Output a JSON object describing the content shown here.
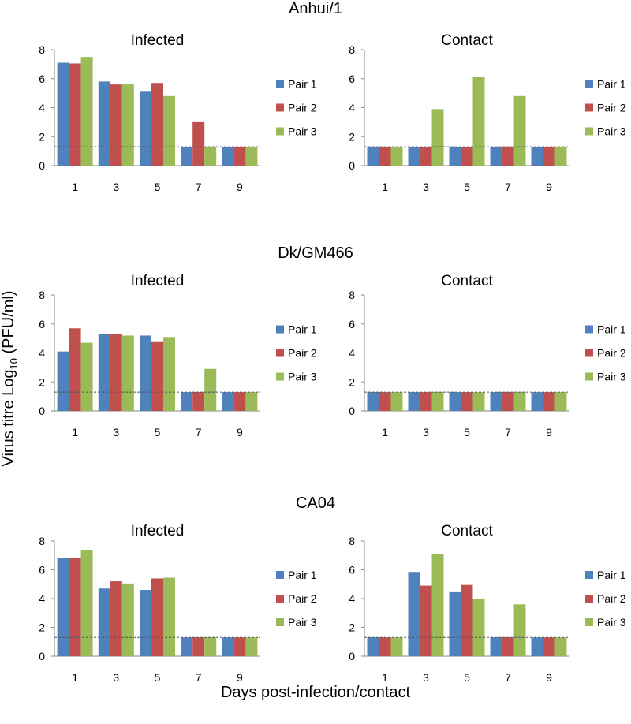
{
  "figure": {
    "ylabel_prefix": "Virus titre Log",
    "ylabel_sub": "10",
    "ylabel_suffix": " (PFU/ml)",
    "xlabel": "Days post-infection/contact"
  },
  "colors": {
    "Pair 1": "#4F81BD",
    "Pair 2": "#C0504D",
    "Pair 3": "#9BBB59",
    "threshold": "#555555",
    "axis": "#868686"
  },
  "chart_data": [
    {
      "type": "bar",
      "group": "Anhui/1",
      "title": "Infected",
      "categories": [
        "1",
        "3",
        "5",
        "7",
        "9"
      ],
      "ylim": [
        0,
        8
      ],
      "yticks": [
        0,
        2,
        4,
        6,
        8
      ],
      "legend": "right",
      "detection_limit": 1.3,
      "series": [
        {
          "name": "Pair 1",
          "values": [
            7.1,
            5.8,
            5.1,
            1.3,
            1.3
          ]
        },
        {
          "name": "Pair 2",
          "values": [
            7.05,
            5.6,
            5.7,
            3.0,
            1.3
          ]
        },
        {
          "name": "Pair 3",
          "values": [
            7.5,
            5.6,
            4.8,
            1.3,
            1.3
          ]
        }
      ]
    },
    {
      "type": "bar",
      "group": "Anhui/1",
      "title": "Contact",
      "categories": [
        "1",
        "3",
        "5",
        "7",
        "9"
      ],
      "ylim": [
        0,
        8
      ],
      "yticks": [
        0,
        2,
        4,
        6,
        8
      ],
      "legend": "right",
      "detection_limit": 1.3,
      "series": [
        {
          "name": "Pair 1",
          "values": [
            1.3,
            1.3,
            1.3,
            1.3,
            1.3
          ]
        },
        {
          "name": "Pair 2",
          "values": [
            1.3,
            1.3,
            1.3,
            1.3,
            1.3
          ]
        },
        {
          "name": "Pair 3",
          "values": [
            1.3,
            3.9,
            6.1,
            4.8,
            1.3
          ]
        }
      ]
    },
    {
      "type": "bar",
      "group": "Dk/GM466",
      "title": "Infected",
      "categories": [
        "1",
        "3",
        "5",
        "7",
        "9"
      ],
      "ylim": [
        0,
        8
      ],
      "yticks": [
        0,
        2,
        4,
        6,
        8
      ],
      "legend": "right",
      "detection_limit": 1.3,
      "series": [
        {
          "name": "Pair 1",
          "values": [
            4.1,
            5.3,
            5.2,
            1.3,
            1.3
          ]
        },
        {
          "name": "Pair 2",
          "values": [
            5.7,
            5.3,
            4.75,
            1.3,
            1.3
          ]
        },
        {
          "name": "Pair 3",
          "values": [
            4.7,
            5.2,
            5.1,
            2.9,
            1.3
          ]
        }
      ]
    },
    {
      "type": "bar",
      "group": "Dk/GM466",
      "title": "Contact",
      "categories": [
        "1",
        "3",
        "5",
        "7",
        "9"
      ],
      "ylim": [
        0,
        8
      ],
      "yticks": [
        0,
        2,
        4,
        6,
        8
      ],
      "legend": "right",
      "detection_limit": 1.3,
      "series": [
        {
          "name": "Pair 1",
          "values": [
            1.3,
            1.3,
            1.3,
            1.3,
            1.3
          ]
        },
        {
          "name": "Pair 2",
          "values": [
            1.3,
            1.3,
            1.3,
            1.3,
            1.3
          ]
        },
        {
          "name": "Pair 3",
          "values": [
            1.3,
            1.3,
            1.3,
            1.3,
            1.3
          ]
        }
      ]
    },
    {
      "type": "bar",
      "group": "CA04",
      "title": "Infected",
      "categories": [
        "1",
        "3",
        "5",
        "7",
        "9"
      ],
      "ylim": [
        0,
        8
      ],
      "yticks": [
        0,
        2,
        4,
        6,
        8
      ],
      "legend": "right",
      "detection_limit": 1.3,
      "series": [
        {
          "name": "Pair 1",
          "values": [
            6.8,
            4.7,
            4.6,
            1.3,
            1.3
          ]
        },
        {
          "name": "Pair 2",
          "values": [
            6.8,
            5.2,
            5.4,
            1.3,
            1.3
          ]
        },
        {
          "name": "Pair 3",
          "values": [
            7.35,
            5.05,
            5.45,
            1.3,
            1.3
          ]
        }
      ]
    },
    {
      "type": "bar",
      "group": "CA04",
      "title": "Contact",
      "categories": [
        "1",
        "3",
        "5",
        "7",
        "9"
      ],
      "ylim": [
        0,
        8
      ],
      "yticks": [
        0,
        2,
        4,
        6,
        8
      ],
      "legend": "right",
      "detection_limit": 1.3,
      "series": [
        {
          "name": "Pair 1",
          "values": [
            1.3,
            5.85,
            4.5,
            1.3,
            1.3
          ]
        },
        {
          "name": "Pair 2",
          "values": [
            1.3,
            4.9,
            4.95,
            1.3,
            1.3
          ]
        },
        {
          "name": "Pair 3",
          "values": [
            1.3,
            7.1,
            4.0,
            3.6,
            1.3
          ]
        }
      ]
    }
  ]
}
